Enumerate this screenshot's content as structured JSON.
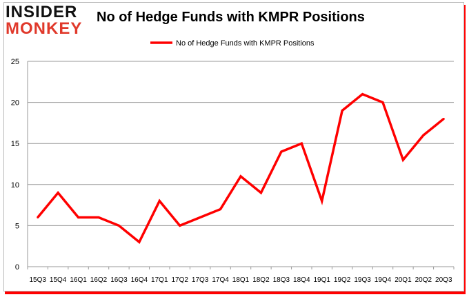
{
  "logo": {
    "line1": "INSIDER",
    "line2": "MONKEY"
  },
  "chart_data": {
    "type": "line",
    "title": "No of Hedge Funds with KMPR Positions",
    "legend": "top-center",
    "categories": [
      "15Q3",
      "15Q4",
      "16Q1",
      "16Q2",
      "16Q3",
      "16Q4",
      "17Q1",
      "17Q2",
      "17Q3",
      "17Q4",
      "18Q1",
      "18Q2",
      "18Q3",
      "18Q4",
      "19Q1",
      "19Q2",
      "19Q3",
      "19Q4",
      "20Q1",
      "20Q2",
      "20Q3"
    ],
    "series": [
      {
        "name": "No of Hedge Funds with KMPR Positions",
        "color": "#ff0000",
        "values": [
          6,
          9,
          6,
          6,
          5,
          3,
          8,
          5,
          6,
          7,
          11,
          9,
          14,
          15,
          8,
          19,
          21,
          20,
          13,
          16,
          18
        ]
      }
    ],
    "ylim": [
      0,
      25
    ],
    "yticks": [
      0,
      5,
      10,
      15,
      20,
      25
    ],
    "grid": true
  }
}
